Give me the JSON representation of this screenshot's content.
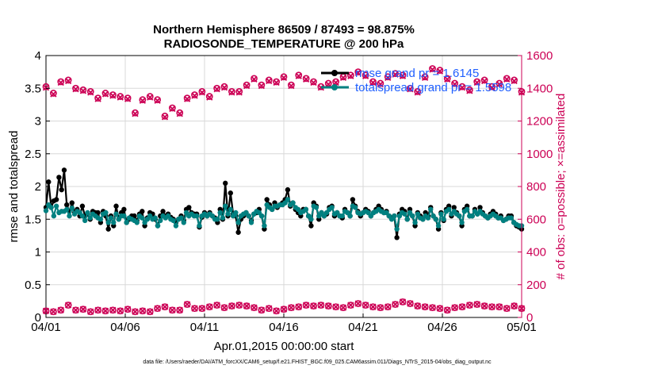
{
  "chart_data": {
    "type": "line",
    "title_lines": [
      "Northern Hemisphere 86509 / 87493 = 98.875%",
      "RADIOSONDE_TEMPERATURE @ 200 hPa"
    ],
    "xlabel": "Apr.01,2015 00:00:00 start",
    "ylabel_left": "rmse and totalspread",
    "ylabel_right": "# of obs: o=possible; ×=assimilated",
    "x_tick_labels": [
      "04/01",
      "04/06",
      "04/11",
      "04/16",
      "04/21",
      "04/26",
      "05/01"
    ],
    "x_tick_days": [
      0,
      5,
      10,
      15,
      20,
      25,
      30
    ],
    "x_range_days": [
      0,
      30
    ],
    "ylim_left": [
      0,
      4
    ],
    "yticks_left": [
      0,
      0.5,
      1,
      1.5,
      2,
      2.5,
      3,
      3.5,
      4
    ],
    "ylim_right": [
      0,
      1600
    ],
    "yticks_right": [
      0,
      200,
      400,
      600,
      800,
      1000,
      1200,
      1400,
      1600
    ],
    "grid": true,
    "legend_position": "top-right",
    "colors": {
      "rmse": "#000000",
      "totalspread": "#008080",
      "obs": "#cc0055",
      "legend_text": "#1f5fff",
      "grid": "#d8d8d8",
      "right_axis": "#cc0055"
    },
    "series": [
      {
        "name": "rmse grand pr = 1.6145",
        "axis": "left",
        "color": "#000000",
        "values": [
          1.68,
          2.07,
          1.68,
          1.78,
          1.8,
          2.14,
          1.95,
          2.25,
          1.72,
          1.62,
          1.75,
          1.6,
          1.65,
          1.55,
          1.7,
          1.55,
          1.58,
          1.5,
          1.62,
          1.6,
          1.6,
          1.45,
          1.62,
          1.55,
          1.35,
          1.55,
          1.4,
          1.7,
          1.5,
          1.6,
          1.65,
          1.45,
          1.5,
          1.55,
          1.55,
          1.48,
          1.58,
          1.62,
          1.4,
          1.52,
          1.6,
          1.58,
          1.5,
          1.4,
          1.55,
          1.62,
          1.55,
          1.58,
          1.53,
          1.5,
          1.45,
          1.5,
          1.55,
          1.48,
          1.65,
          1.68,
          1.6,
          1.58,
          1.58,
          1.38,
          1.53,
          1.6,
          1.55,
          1.6,
          1.55,
          1.52,
          1.45,
          1.65,
          1.5,
          2.05,
          1.55,
          1.9,
          1.58,
          1.55,
          1.3,
          1.5,
          1.55,
          1.6,
          1.55,
          1.48,
          1.58,
          1.6,
          1.65,
          1.55,
          1.35,
          1.8,
          1.72,
          1.65,
          1.75,
          1.68,
          1.72,
          1.75,
          1.8,
          1.95,
          1.7,
          1.75,
          1.65,
          1.6,
          1.55,
          1.65,
          1.65,
          1.55,
          1.4,
          1.75,
          1.7,
          1.5,
          1.6,
          1.55,
          1.58,
          1.68,
          1.7,
          1.55,
          1.6,
          1.55,
          1.52,
          1.65,
          1.6,
          1.55,
          1.8,
          1.7,
          1.62,
          1.55,
          1.6,
          1.65,
          1.62,
          1.55,
          1.6,
          1.65,
          1.7,
          1.65,
          1.6,
          1.62,
          1.55,
          1.52,
          1.55,
          1.22,
          1.58,
          1.65,
          1.62,
          1.5,
          1.65,
          1.55,
          1.4,
          1.6,
          1.55,
          1.5,
          1.6,
          1.55,
          1.68,
          1.55,
          1.5,
          1.35,
          1.6,
          1.48,
          1.65,
          1.7,
          1.55,
          1.68,
          1.6,
          1.55,
          1.4,
          1.65,
          1.7,
          1.55,
          1.55,
          1.65,
          1.58,
          1.68,
          1.6,
          1.55,
          1.52,
          1.58,
          1.62,
          1.58,
          1.52,
          1.55,
          1.48,
          1.5,
          1.55,
          1.55,
          1.45,
          1.4,
          1.38,
          1.35
        ]
      },
      {
        "name": "totalspread grand pr = 1.5598",
        "axis": "left",
        "color": "#008080",
        "values": [
          1.63,
          1.72,
          1.68,
          1.55,
          1.7,
          1.6,
          1.62,
          1.62,
          1.65,
          1.55,
          1.67,
          1.58,
          1.62,
          1.6,
          1.55,
          1.48,
          1.6,
          1.52,
          1.58,
          1.55,
          1.52,
          1.5,
          1.58,
          1.6,
          1.45,
          1.52,
          1.45,
          1.58,
          1.5,
          1.55,
          1.55,
          1.45,
          1.52,
          1.5,
          1.48,
          1.45,
          1.55,
          1.52,
          1.45,
          1.5,
          1.55,
          1.5,
          1.52,
          1.4,
          1.48,
          1.55,
          1.52,
          1.55,
          1.5,
          1.48,
          1.4,
          1.5,
          1.52,
          1.45,
          1.6,
          1.55,
          1.58,
          1.55,
          1.55,
          1.4,
          1.55,
          1.58,
          1.55,
          1.58,
          1.55,
          1.5,
          1.5,
          1.6,
          1.52,
          1.7,
          1.58,
          1.65,
          1.55,
          1.6,
          1.45,
          1.55,
          1.58,
          1.6,
          1.55,
          1.45,
          1.58,
          1.62,
          1.6,
          1.55,
          1.4,
          1.72,
          1.68,
          1.65,
          1.7,
          1.7,
          1.72,
          1.72,
          1.75,
          1.8,
          1.72,
          1.75,
          1.68,
          1.65,
          1.6,
          1.62,
          1.65,
          1.55,
          1.5,
          1.7,
          1.68,
          1.55,
          1.6,
          1.55,
          1.6,
          1.65,
          1.68,
          1.58,
          1.6,
          1.55,
          1.55,
          1.62,
          1.6,
          1.55,
          1.7,
          1.68,
          1.6,
          1.58,
          1.6,
          1.62,
          1.6,
          1.55,
          1.6,
          1.62,
          1.65,
          1.62,
          1.6,
          1.6,
          1.55,
          1.5,
          1.55,
          1.35,
          1.55,
          1.6,
          1.58,
          1.5,
          1.6,
          1.55,
          1.45,
          1.58,
          1.52,
          1.5,
          1.55,
          1.52,
          1.65,
          1.55,
          1.5,
          1.4,
          1.58,
          1.5,
          1.62,
          1.65,
          1.58,
          1.62,
          1.58,
          1.55,
          1.45,
          1.62,
          1.65,
          1.55,
          1.55,
          1.62,
          1.58,
          1.62,
          1.58,
          1.55,
          1.52,
          1.55,
          1.58,
          1.55,
          1.52,
          1.52,
          1.48,
          1.5,
          1.52,
          1.52,
          1.45,
          1.42,
          1.4,
          1.4
        ]
      },
      {
        "name": "obs possible",
        "axis": "right",
        "marker": "circle",
        "color": "#cc0055",
        "values": [
          1410,
          1370,
          1440,
          1450,
          1400,
          1390,
          1380,
          1340,
          1370,
          1360,
          1350,
          1340,
          1250,
          1330,
          1350,
          1330,
          1230,
          1280,
          1250,
          1340,
          1360,
          1380,
          1350,
          1400,
          1410,
          1380,
          1380,
          1420,
          1460,
          1420,
          1450,
          1440,
          1470,
          1420,
          1480,
          1460,
          1440,
          1410,
          1430,
          1440,
          1470,
          1480,
          1500,
          1480,
          1440,
          1430,
          1470,
          1490,
          1480,
          1400,
          1380,
          1470,
          1520,
          1510,
          1460,
          1430,
          1410,
          1390,
          1440,
          1450,
          1410,
          1430,
          1460,
          1450,
          1380
        ]
      },
      {
        "name": "obs assimilated",
        "axis": "right",
        "marker": "x",
        "color": "#cc0055",
        "values": [
          1405,
          1365,
          1435,
          1445,
          1395,
          1385,
          1375,
          1335,
          1365,
          1355,
          1345,
          1335,
          1245,
          1325,
          1345,
          1325,
          1225,
          1275,
          1245,
          1335,
          1355,
          1375,
          1345,
          1395,
          1405,
          1375,
          1375,
          1415,
          1455,
          1415,
          1445,
          1435,
          1465,
          1415,
          1475,
          1455,
          1435,
          1405,
          1425,
          1435,
          1465,
          1475,
          1495,
          1475,
          1435,
          1425,
          1465,
          1485,
          1475,
          1395,
          1375,
          1465,
          1515,
          1505,
          1455,
          1425,
          1405,
          1385,
          1435,
          1445,
          1405,
          1425,
          1455,
          1445,
          1375
        ]
      },
      {
        "name": "obs possible (low)",
        "axis": "right",
        "marker": "circle",
        "color": "#cc0055",
        "values": [
          40,
          35,
          45,
          75,
          45,
          50,
          35,
          45,
          40,
          45,
          40,
          50,
          35,
          40,
          35,
          55,
          65,
          45,
          45,
          80,
          55,
          55,
          65,
          75,
          60,
          70,
          75,
          70,
          60,
          45,
          55,
          40,
          50,
          60,
          65,
          75,
          70,
          75,
          70,
          65,
          60,
          75,
          85,
          75,
          65,
          60,
          65,
          80,
          95,
          85,
          70,
          65,
          60,
          55,
          45,
          60,
          65,
          75,
          80,
          70,
          65,
          65,
          55,
          70,
          55
        ]
      }
    ]
  },
  "footer": "data file: /Users/raeder/DAI/ATM_forcXX/CAM6_setup/f.e21.FHIST_BGC.f09_025.CAM6assim.011/Diags_NTrS_2015-04/obs_diag_output.nc"
}
